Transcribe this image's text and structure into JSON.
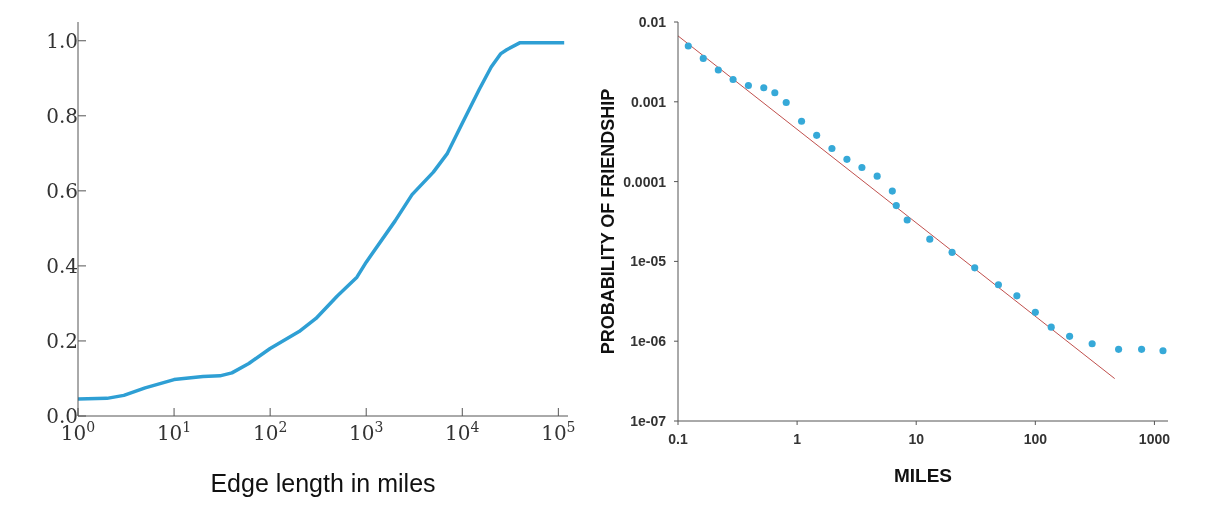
{
  "chart_data": [
    {
      "type": "line",
      "xlabel": "Edge length in miles",
      "log": "x",
      "xlim": [
        1,
        126000
      ],
      "xticks": [
        {
          "value": 1,
          "label": "10$^{0}$"
        },
        {
          "value": 10,
          "label": "10$^{1}$"
        },
        {
          "value": 100,
          "label": "10$^{2}$"
        },
        {
          "value": 1000,
          "label": "10$^{3}$"
        },
        {
          "value": 10000,
          "label": "10$^{4}$"
        },
        {
          "value": 100000,
          "label": "10$^{5}$"
        }
      ],
      "ylim": [
        0,
        1.05
      ],
      "yticks": [
        {
          "value": 0,
          "label": "0.0"
        },
        0.2,
        0.4,
        0.6,
        0.8,
        {
          "value": 1,
          "label": "1.0"
        }
      ],
      "series": [
        {
          "color": "#2e9fd4",
          "x": [
            1,
            2,
            3,
            5,
            10,
            20,
            30,
            40,
            60,
            100,
            200,
            300,
            500,
            800,
            1000,
            2000,
            3000,
            5000,
            7000,
            10000,
            15000,
            20000,
            25000,
            29000,
            40000,
            45000,
            115000
          ],
          "values": [
            0.045,
            0.047,
            0.055,
            0.075,
            0.097,
            0.105,
            0.107,
            0.115,
            0.14,
            0.18,
            0.225,
            0.26,
            0.32,
            0.37,
            0.41,
            0.52,
            0.59,
            0.65,
            0.7,
            0.78,
            0.87,
            0.93,
            0.965,
            0.976,
            0.995,
            0.995,
            0.995
          ]
        }
      ]
    },
    {
      "type": "scatter",
      "xlabel": "MILES",
      "ylabel": "PROBABILITY OF FRIENDSHIP",
      "log": "xy",
      "marker": "circle",
      "xlim": [
        0.1,
        1300
      ],
      "xticks": [
        0.1,
        1,
        10,
        100,
        1000
      ],
      "ylim": [
        1e-07,
        0.01
      ],
      "yticks": [
        0.01,
        0.001,
        0.0001,
        {
          "value": 1e-05,
          "label": "1e-05"
        },
        {
          "value": 1e-06,
          "label": "1e-06"
        },
        {
          "value": 1e-07,
          "label": "1e-07"
        }
      ],
      "series": [
        {
          "color": "#36a9d8",
          "x": [
            0.122,
            0.163,
            0.218,
            0.29,
            0.39,
            0.525,
            0.65,
            0.81,
            1.09,
            1.46,
            1.96,
            2.62,
            3.5,
            4.7,
            6.3,
            6.8,
            8.4,
            13,
            20,
            31,
            49,
            70,
            100,
            136,
            194,
            300,
            500,
            780,
            1180
          ],
          "values": [
            0.005,
            0.0035,
            0.0025,
            0.0019,
            0.0016,
            0.0015,
            0.0013,
            0.00098,
            0.00057,
            0.00038,
            0.00026,
            0.00019,
            0.00015,
            0.000117,
            7.6e-05,
            5e-05,
            3.3e-05,
            1.9e-05,
            1.3e-05,
            8.3e-06,
            5.1e-06,
            3.7e-06,
            2.3e-06,
            1.5e-06,
            1.15e-06,
            9.3e-07,
            7.9e-07,
            7.9e-07,
            7.6e-07
          ]
        },
        {
          "type": "line",
          "marker": "none",
          "color": "#c0504d",
          "x": [
            0.1,
            464
          ],
          "values": [
            0.0067,
            3.4e-07
          ]
        }
      ]
    }
  ]
}
